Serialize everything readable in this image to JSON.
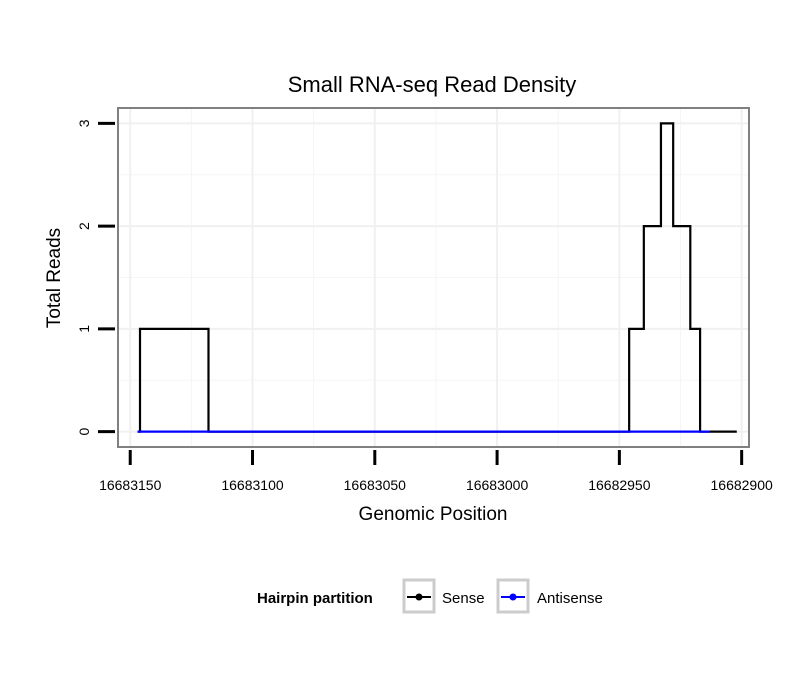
{
  "chart_data": {
    "type": "line",
    "title": "Small RNA-seq Read Density",
    "xlabel": "Genomic Position",
    "ylabel": "Total Reads",
    "x_reversed": true,
    "xlim": [
      16683155,
      16682897
    ],
    "ylim": [
      -0.15,
      3.15
    ],
    "x_ticks": [
      16683150,
      16683100,
      16683050,
      16683000,
      16682950,
      16682900
    ],
    "x_tick_labels": [
      "16683150",
      "16683100",
      "16683050",
      "16683000",
      "16682950",
      "16682900"
    ],
    "y_ticks": [
      0,
      1,
      2,
      3
    ],
    "y_tick_labels": [
      "0",
      "1",
      "2",
      "3"
    ],
    "grid": true,
    "legend": {
      "title": "Hairpin partition",
      "position": "bottom"
    },
    "series": [
      {
        "name": "Sense",
        "color": "#000000",
        "step": "mid",
        "x": [
          16683147,
          16683146,
          16683119,
          16683118,
          16682947,
          16682946,
          16682941,
          16682940,
          16682934,
          16682933,
          16682929,
          16682928,
          16682922,
          16682921,
          16682918,
          16682917,
          16682914,
          16682913,
          16682902
        ],
        "y": [
          0,
          1,
          1,
          0,
          0,
          1,
          1,
          2,
          2,
          3,
          3,
          2,
          2,
          1,
          1,
          0,
          0,
          0,
          0
        ]
      },
      {
        "name": "Antisense",
        "color": "#0000ff",
        "step": "mid",
        "x": [
          16683147,
          16683118,
          16682947,
          16682913
        ],
        "y": [
          0,
          0,
          0,
          0
        ]
      }
    ]
  }
}
